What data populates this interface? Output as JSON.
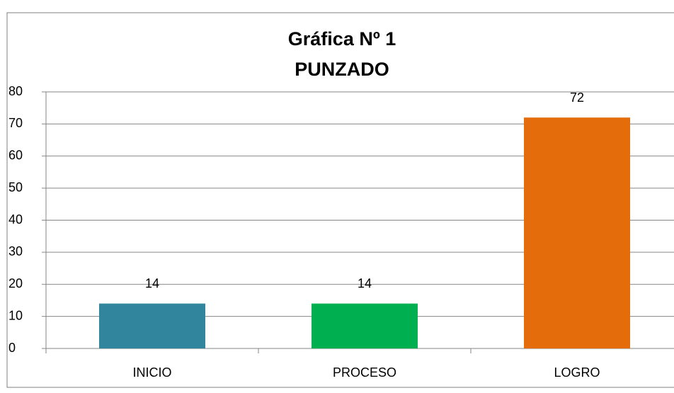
{
  "chart_data": {
    "type": "bar",
    "title": "Gráfica  Nº 1",
    "subtitle": "PUNZADO",
    "categories": [
      "INICIO",
      "PROCESO",
      "LOGRO"
    ],
    "values": [
      14,
      14,
      72
    ],
    "colors": [
      "#31859c",
      "#00b050",
      "#e46c0a"
    ],
    "ylim": [
      0,
      80
    ],
    "yticks": [
      0,
      10,
      20,
      30,
      40,
      50,
      60,
      70,
      80
    ],
    "grid": true
  }
}
